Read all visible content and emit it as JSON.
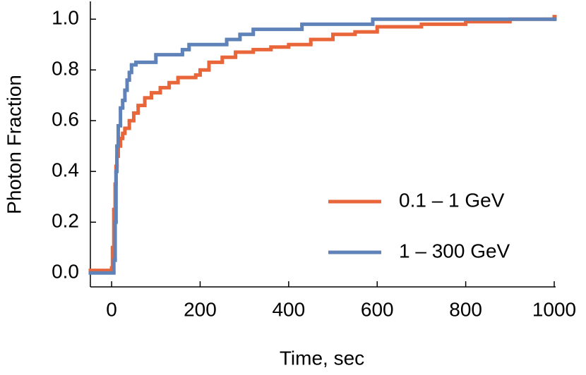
{
  "chart_data": {
    "type": "line",
    "step": true,
    "x_label": "Time, sec",
    "y_label": "Photon Fraction",
    "xlim": [
      -48,
      1000
    ],
    "ylim": [
      -0.055,
      1.07
    ],
    "xticks": [
      0,
      200,
      400,
      600,
      800,
      1000
    ],
    "yticks": [
      {
        "value": 0,
        "label": "0.0"
      },
      0.2,
      0.4,
      0.6,
      0.8,
      {
        "value": 1,
        "label": "1.0"
      }
    ],
    "legend": "lower right",
    "series": [
      {
        "name": "0.1 – 1 GeV",
        "color": "#e9663a",
        "x": [
          -48,
          0,
          2,
          5,
          8,
          10,
          12,
          15,
          20,
          25,
          30,
          40,
          50,
          60,
          75,
          90,
          110,
          130,
          150,
          170,
          190,
          200,
          220,
          250,
          280,
          320,
          360,
          400,
          450,
          500,
          550,
          600,
          700,
          800,
          900,
          1000
        ],
        "values": [
          0.01,
          0.02,
          0.1,
          0.25,
          0.35,
          0.42,
          0.46,
          0.5,
          0.53,
          0.55,
          0.57,
          0.6,
          0.63,
          0.66,
          0.69,
          0.71,
          0.73,
          0.75,
          0.77,
          0.77,
          0.78,
          0.8,
          0.83,
          0.85,
          0.87,
          0.88,
          0.89,
          0.9,
          0.92,
          0.94,
          0.95,
          0.97,
          0.98,
          0.99,
          1.0,
          1.01
        ]
      },
      {
        "name": "1 – 300 GeV",
        "color": "#5f83b8",
        "x": [
          -48,
          5,
          8,
          10,
          12,
          15,
          20,
          25,
          30,
          35,
          40,
          45,
          55,
          100,
          160,
          175,
          260,
          290,
          320,
          430,
          590,
          1000
        ],
        "values": [
          0.0,
          0.05,
          0.2,
          0.4,
          0.5,
          0.58,
          0.65,
          0.68,
          0.72,
          0.76,
          0.79,
          0.82,
          0.83,
          0.86,
          0.88,
          0.9,
          0.92,
          0.94,
          0.96,
          0.98,
          1.0,
          1.0
        ]
      }
    ]
  }
}
